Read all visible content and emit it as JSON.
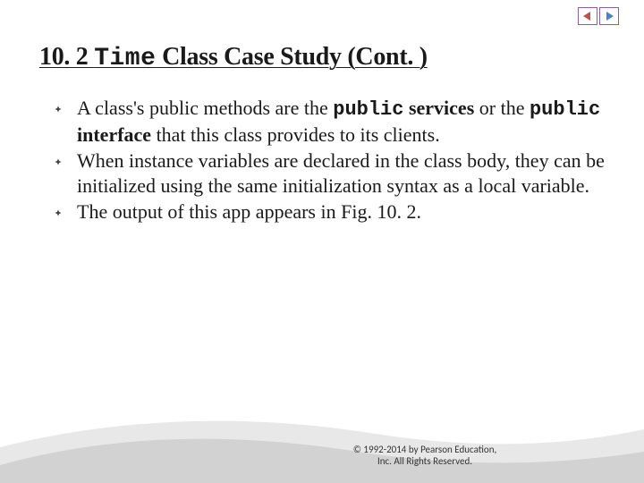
{
  "nav": {
    "prev_color": "#c0504d",
    "next_color": "#4f81bd",
    "border_color": "#8b5fa8"
  },
  "title": {
    "section": "10. 2 ",
    "mono": "Time",
    "rest": " Class Case Study (Cont. )"
  },
  "bullets": [
    {
      "parts": [
        {
          "t": "A class's public methods are the "
        },
        {
          "t": "public",
          "mono": true,
          "bold": true
        },
        {
          "t": " services",
          "bold": true
        },
        {
          "t": " or the "
        },
        {
          "t": "public",
          "mono": true,
          "bold": true
        },
        {
          "t": " interface",
          "bold": true
        },
        {
          "t": " that this class provides to its clients."
        }
      ]
    },
    {
      "parts": [
        {
          "t": "When instance variables are declared in the class body, they can be initialized using the same initialization syntax as a local variable."
        }
      ]
    },
    {
      "parts": [
        {
          "t": "The output of this app appears in Fig. 10. 2."
        }
      ]
    }
  ],
  "copyright": {
    "line1": "© 1992-2014 by Pearson Education,",
    "line2": "Inc. All Rights Reserved."
  },
  "colors": {
    "text": "#1a1a1a",
    "background": "#ffffff",
    "swoosh_light": "#e8e8e8",
    "swoosh_dark": "#bfbfbf"
  }
}
